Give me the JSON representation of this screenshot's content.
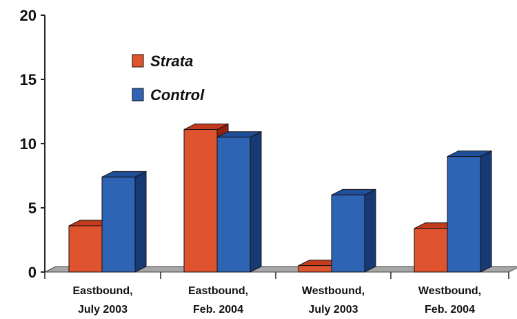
{
  "chart_data": {
    "type": "bar",
    "categories": [
      [
        "Eastbound,",
        "July 2003"
      ],
      [
        "Eastbound,",
        "Feb. 2004"
      ],
      [
        "Westbound,",
        "July 2003"
      ],
      [
        "Westbound,",
        "Feb. 2004"
      ]
    ],
    "series": [
      {
        "name": "Strata",
        "values": [
          3.6,
          11.1,
          0.5,
          3.4
        ],
        "color": "#e0532f",
        "top_color": "#c33a1c",
        "side_color": "#8e2310"
      },
      {
        "name": "Control",
        "values": [
          7.4,
          10.5,
          6.0,
          9.0
        ],
        "color": "#2f63b4",
        "top_color": "#1f4f99",
        "side_color": "#173a75"
      }
    ],
    "ylim": [
      0,
      20
    ],
    "yticks": [
      "0",
      "5",
      "10",
      "15",
      "20"
    ],
    "title": "",
    "xlabel": "",
    "ylabel": "",
    "legend": "top-left",
    "grid": false,
    "three_d": true
  }
}
